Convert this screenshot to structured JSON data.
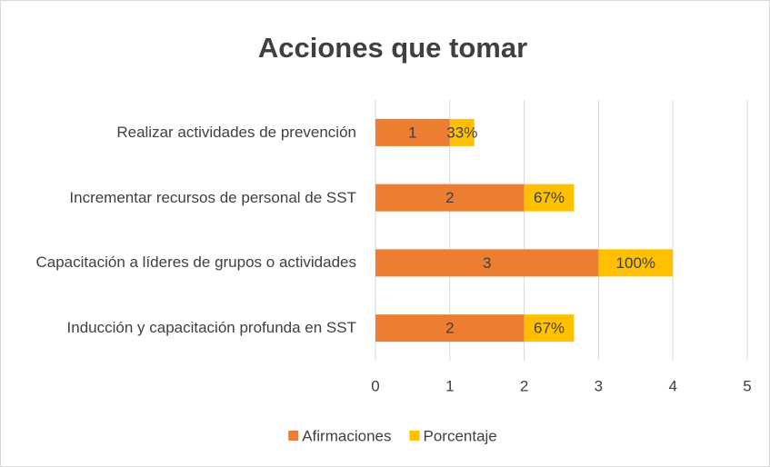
{
  "chart_data": {
    "type": "stacked_barh",
    "title": "Acciones que tomar",
    "categories": [
      "Realizar actividades de prevención",
      "Incrementar recursos de personal de SST",
      "Capacitación a líderes de grupos o actividades",
      "Inducción y capacitación profunda en SST"
    ],
    "series": [
      {
        "name": "Afirmaciones",
        "color": "#ed7d31",
        "values": [
          1,
          2,
          3,
          2
        ]
      },
      {
        "name": "Porcentaje",
        "color": "#ffc000",
        "values": [
          0.33,
          0.67,
          1,
          0.67
        ],
        "value_labels": [
          "33%",
          "67%",
          "100%",
          "67%"
        ]
      }
    ],
    "xlim": [
      0,
      5
    ],
    "xticks": [
      0,
      1,
      2,
      3,
      4,
      5
    ],
    "grid": true,
    "legend": "bottom"
  }
}
